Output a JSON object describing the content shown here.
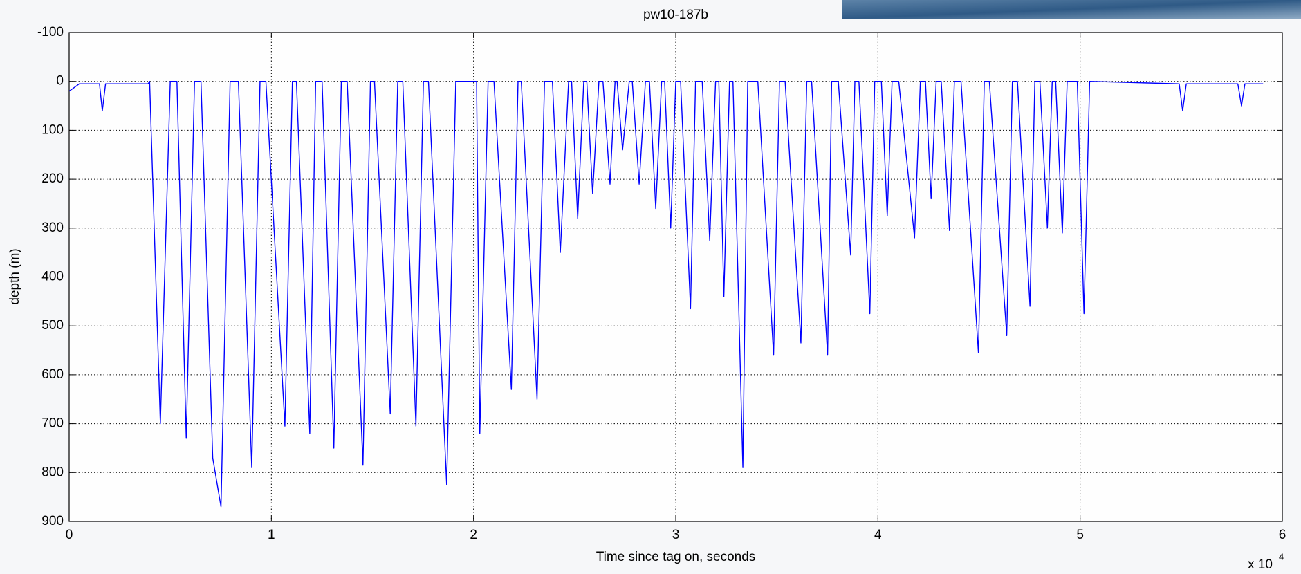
{
  "chart_data": {
    "type": "line",
    "title": "pw10-187b",
    "x_label": "Time since tag on, seconds",
    "y_label": "depth (m)",
    "x_multiplier": "x 10",
    "x_multiplier_exponent": "4",
    "color": "#0000ff",
    "grid": true,
    "y_reversed": true,
    "xlim": [
      0,
      60000
    ],
    "ylim": [
      -100,
      900
    ],
    "xticks": [
      0,
      {
        "value": 10000,
        "label": "1"
      },
      {
        "value": 20000,
        "label": "2"
      },
      {
        "value": 30000,
        "label": "3"
      },
      {
        "value": 40000,
        "label": "4"
      },
      {
        "value": 50000,
        "label": "5"
      },
      {
        "value": 60000,
        "label": "6"
      }
    ],
    "yticks": [
      -100,
      0,
      100,
      200,
      300,
      400,
      500,
      600,
      700,
      800,
      900
    ],
    "x": [
      0,
      500,
      1500,
      1640,
      1800,
      3900,
      3980,
      4510,
      5000,
      5330,
      5790,
      6200,
      6520,
      7100,
      7510,
      7960,
      8370,
      9030,
      9440,
      9730,
      10670,
      11040,
      11240,
      11900,
      12190,
      12510,
      13090,
      13460,
      13750,
      14530,
      14900,
      15100,
      15880,
      16250,
      16500,
      17150,
      17520,
      17770,
      18670,
      19120,
      20000,
      20150,
      20310,
      20720,
      21010,
      21870,
      22200,
      22360,
      23140,
      23510,
      23900,
      24290,
      24700,
      24850,
      25150,
      25450,
      25600,
      25890,
      26200,
      26400,
      26750,
      27000,
      27100,
      27370,
      27700,
      27850,
      28190,
      28500,
      28700,
      29010,
      29300,
      29450,
      29750,
      30000,
      30240,
      30730,
      30980,
      31310,
      31680,
      31970,
      32130,
      32380,
      32660,
      32830,
      33320,
      33560,
      34060,
      34840,
      35130,
      35410,
      36190,
      36480,
      36720,
      37510,
      37710,
      38040,
      38650,
      38860,
      39060,
      39600,
      39840,
      40170,
      40460,
      40700,
      41030,
      41810,
      42100,
      42350,
      42630,
      42880,
      43130,
      43540,
      43780,
      44110,
      44970,
      45260,
      45510,
      46370,
      46650,
      46900,
      47520,
      47760,
      48010,
      48380,
      48620,
      48790,
      49120,
      49360,
      49860,
      50190,
      50470,
      54900,
      55070,
      55250,
      57800,
      57980,
      58150,
      59050
    ],
    "values": [
      20,
      5,
      5,
      60,
      5,
      5,
      0,
      700,
      0,
      0,
      730,
      0,
      0,
      770,
      870,
      0,
      0,
      790,
      0,
      0,
      705,
      0,
      0,
      720,
      0,
      0,
      750,
      0,
      0,
      785,
      0,
      0,
      680,
      0,
      0,
      705,
      0,
      0,
      825,
      0,
      0,
      0,
      720,
      0,
      0,
      630,
      0,
      0,
      650,
      0,
      0,
      350,
      0,
      0,
      280,
      0,
      0,
      230,
      0,
      0,
      210,
      0,
      0,
      140,
      0,
      0,
      210,
      0,
      0,
      260,
      0,
      0,
      300,
      0,
      0,
      465,
      0,
      0,
      325,
      0,
      0,
      440,
      0,
      0,
      790,
      0,
      0,
      560,
      0,
      0,
      535,
      0,
      0,
      560,
      0,
      0,
      355,
      0,
      0,
      475,
      0,
      0,
      275,
      0,
      0,
      320,
      0,
      0,
      240,
      0,
      0,
      305,
      0,
      0,
      555,
      0,
      0,
      520,
      0,
      0,
      460,
      0,
      0,
      300,
      0,
      0,
      310,
      0,
      0,
      475,
      0,
      5,
      60,
      5,
      5,
      50,
      5,
      5
    ]
  }
}
